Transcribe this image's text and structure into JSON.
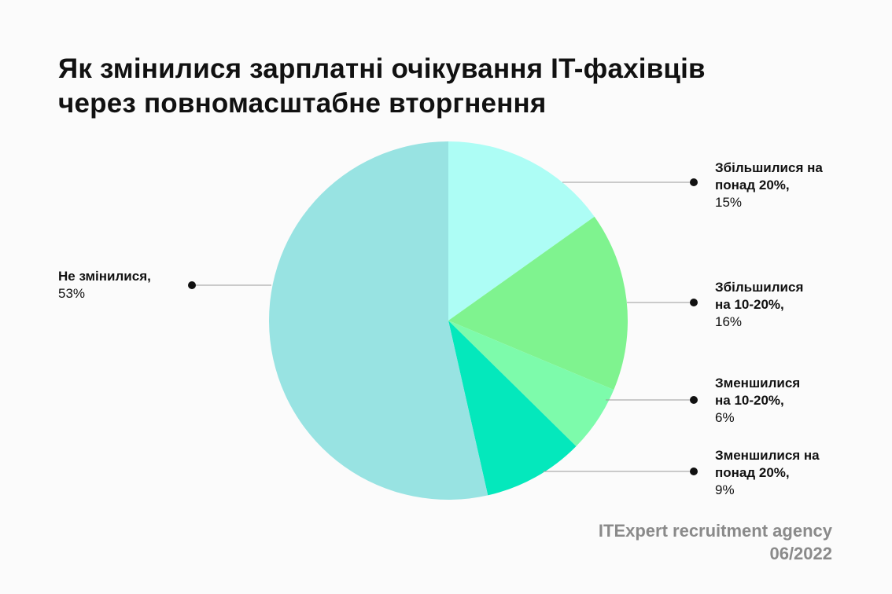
{
  "title": {
    "line1": "Як змінилися зарплатні очікування IT-фахівців",
    "line2": "через повномасштабне вторгнення"
  },
  "source": {
    "agency": "ITExpert recruitment agency",
    "date": "06/2022"
  },
  "chart_data": {
    "type": "pie",
    "labels": [
      {
        "name": "Збільшилися на понад 20%,",
        "value": "15%"
      },
      {
        "name": "Збільшилися на 10-20%,",
        "value": "16%"
      },
      {
        "name": "Зменшилися на 10-20%,",
        "value": "6%"
      },
      {
        "name": "Зменшилися на понад 20%,",
        "value": "9%"
      },
      {
        "name": "Не змінилися,",
        "value": "53%"
      }
    ],
    "values": [
      15,
      16,
      6,
      9,
      53
    ],
    "colors": [
      "#adfdf5",
      "#7ff38f",
      "#7dfbab",
      "#04e8bc",
      "#98e3e2"
    ],
    "start_angle_deg": 0,
    "direction": "clockwise",
    "legend": "callout labels with leader lines"
  }
}
